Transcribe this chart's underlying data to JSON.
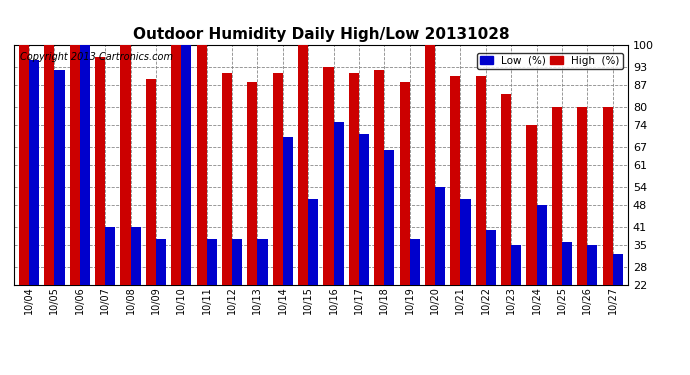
{
  "title": "Outdoor Humidity Daily High/Low 20131028",
  "copyright": "Copyright 2013 Cartronics.com",
  "legend_low": "Low  (%)",
  "legend_high": "High  (%)",
  "dates": [
    "10/04",
    "10/05",
    "10/06",
    "10/07",
    "10/08",
    "10/09",
    "10/10",
    "10/11",
    "10/12",
    "10/13",
    "10/14",
    "10/15",
    "10/16",
    "10/17",
    "10/18",
    "10/19",
    "10/20",
    "10/21",
    "10/22",
    "10/23",
    "10/24",
    "10/25",
    "10/26",
    "10/27"
  ],
  "high": [
    100,
    100,
    100,
    96,
    100,
    89,
    100,
    100,
    91,
    88,
    91,
    100,
    93,
    91,
    92,
    88,
    100,
    90,
    90,
    84,
    74,
    80,
    80,
    80
  ],
  "low": [
    95,
    92,
    100,
    41,
    41,
    37,
    100,
    37,
    37,
    37,
    70,
    50,
    75,
    71,
    66,
    37,
    54,
    50,
    40,
    35,
    48,
    36,
    35,
    32
  ],
  "ylim": [
    22,
    100
  ],
  "yticks": [
    22,
    28,
    35,
    41,
    48,
    54,
    61,
    67,
    74,
    80,
    87,
    93,
    100
  ],
  "bar_color_low": "#0000cc",
  "bar_color_high": "#cc0000",
  "background_color": "#ffffff",
  "grid_color": "#888888",
  "title_fontsize": 11,
  "copyright_fontsize": 7,
  "bar_width": 0.4
}
